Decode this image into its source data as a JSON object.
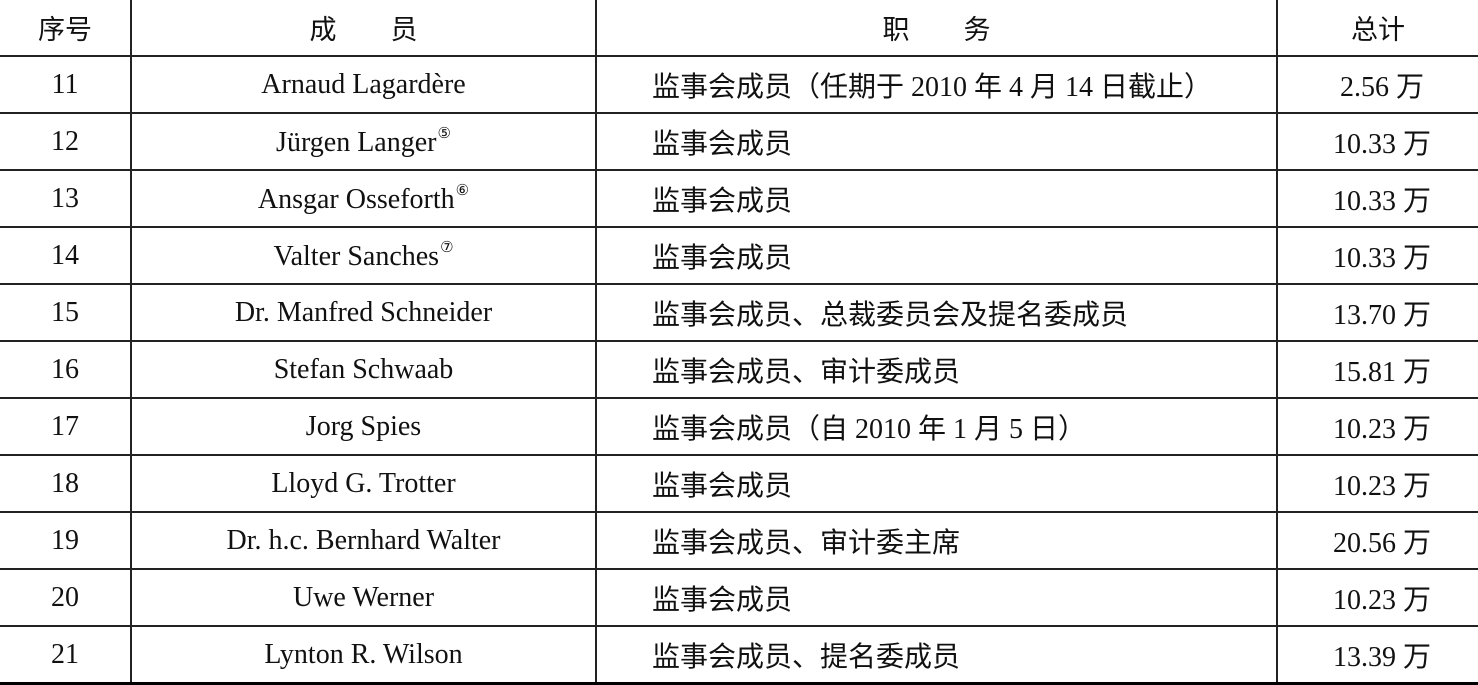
{
  "table": {
    "headers": {
      "index": "序号",
      "member": "成　　员",
      "duty": "职　　务",
      "total": "总计"
    },
    "rows": [
      {
        "index": "11",
        "member": "Arnaud Lagardère",
        "note": "",
        "duty": "监事会成员（任期于 2010 年 4 月 14 日截止）",
        "total": "2.56 万"
      },
      {
        "index": "12",
        "member": "Jürgen Langer",
        "note": "⑤",
        "duty": "监事会成员",
        "total": "10.33 万"
      },
      {
        "index": "13",
        "member": "Ansgar Osseforth",
        "note": "⑥",
        "duty": "监事会成员",
        "total": "10.33 万"
      },
      {
        "index": "14",
        "member": "Valter Sanches",
        "note": "⑦",
        "duty": "监事会成员",
        "total": "10.33 万"
      },
      {
        "index": "15",
        "member": "Dr. Manfred Schneider",
        "note": "",
        "duty": "监事会成员、总裁委员会及提名委成员",
        "total": "13.70 万"
      },
      {
        "index": "16",
        "member": "Stefan Schwaab",
        "note": "",
        "duty": "监事会成员、审计委成员",
        "total": "15.81 万"
      },
      {
        "index": "17",
        "member": "Jorg Spies",
        "note": "",
        "duty": "监事会成员（自 2010 年 1 月 5 日）",
        "total": "10.23 万"
      },
      {
        "index": "18",
        "member": "Lloyd G. Trotter",
        "note": "",
        "duty": "监事会成员",
        "total": "10.23 万"
      },
      {
        "index": "19",
        "member": "Dr. h.c. Bernhard Walter",
        "note": "",
        "duty": "监事会成员、审计委主席",
        "total": "20.56 万"
      },
      {
        "index": "20",
        "member": "Uwe Werner",
        "note": "",
        "duty": "监事会成员",
        "total": "10.23 万"
      },
      {
        "index": "21",
        "member": "Lynton R. Wilson",
        "note": "",
        "duty": "监事会成员、提名委成员",
        "total": "13.39 万"
      }
    ]
  }
}
